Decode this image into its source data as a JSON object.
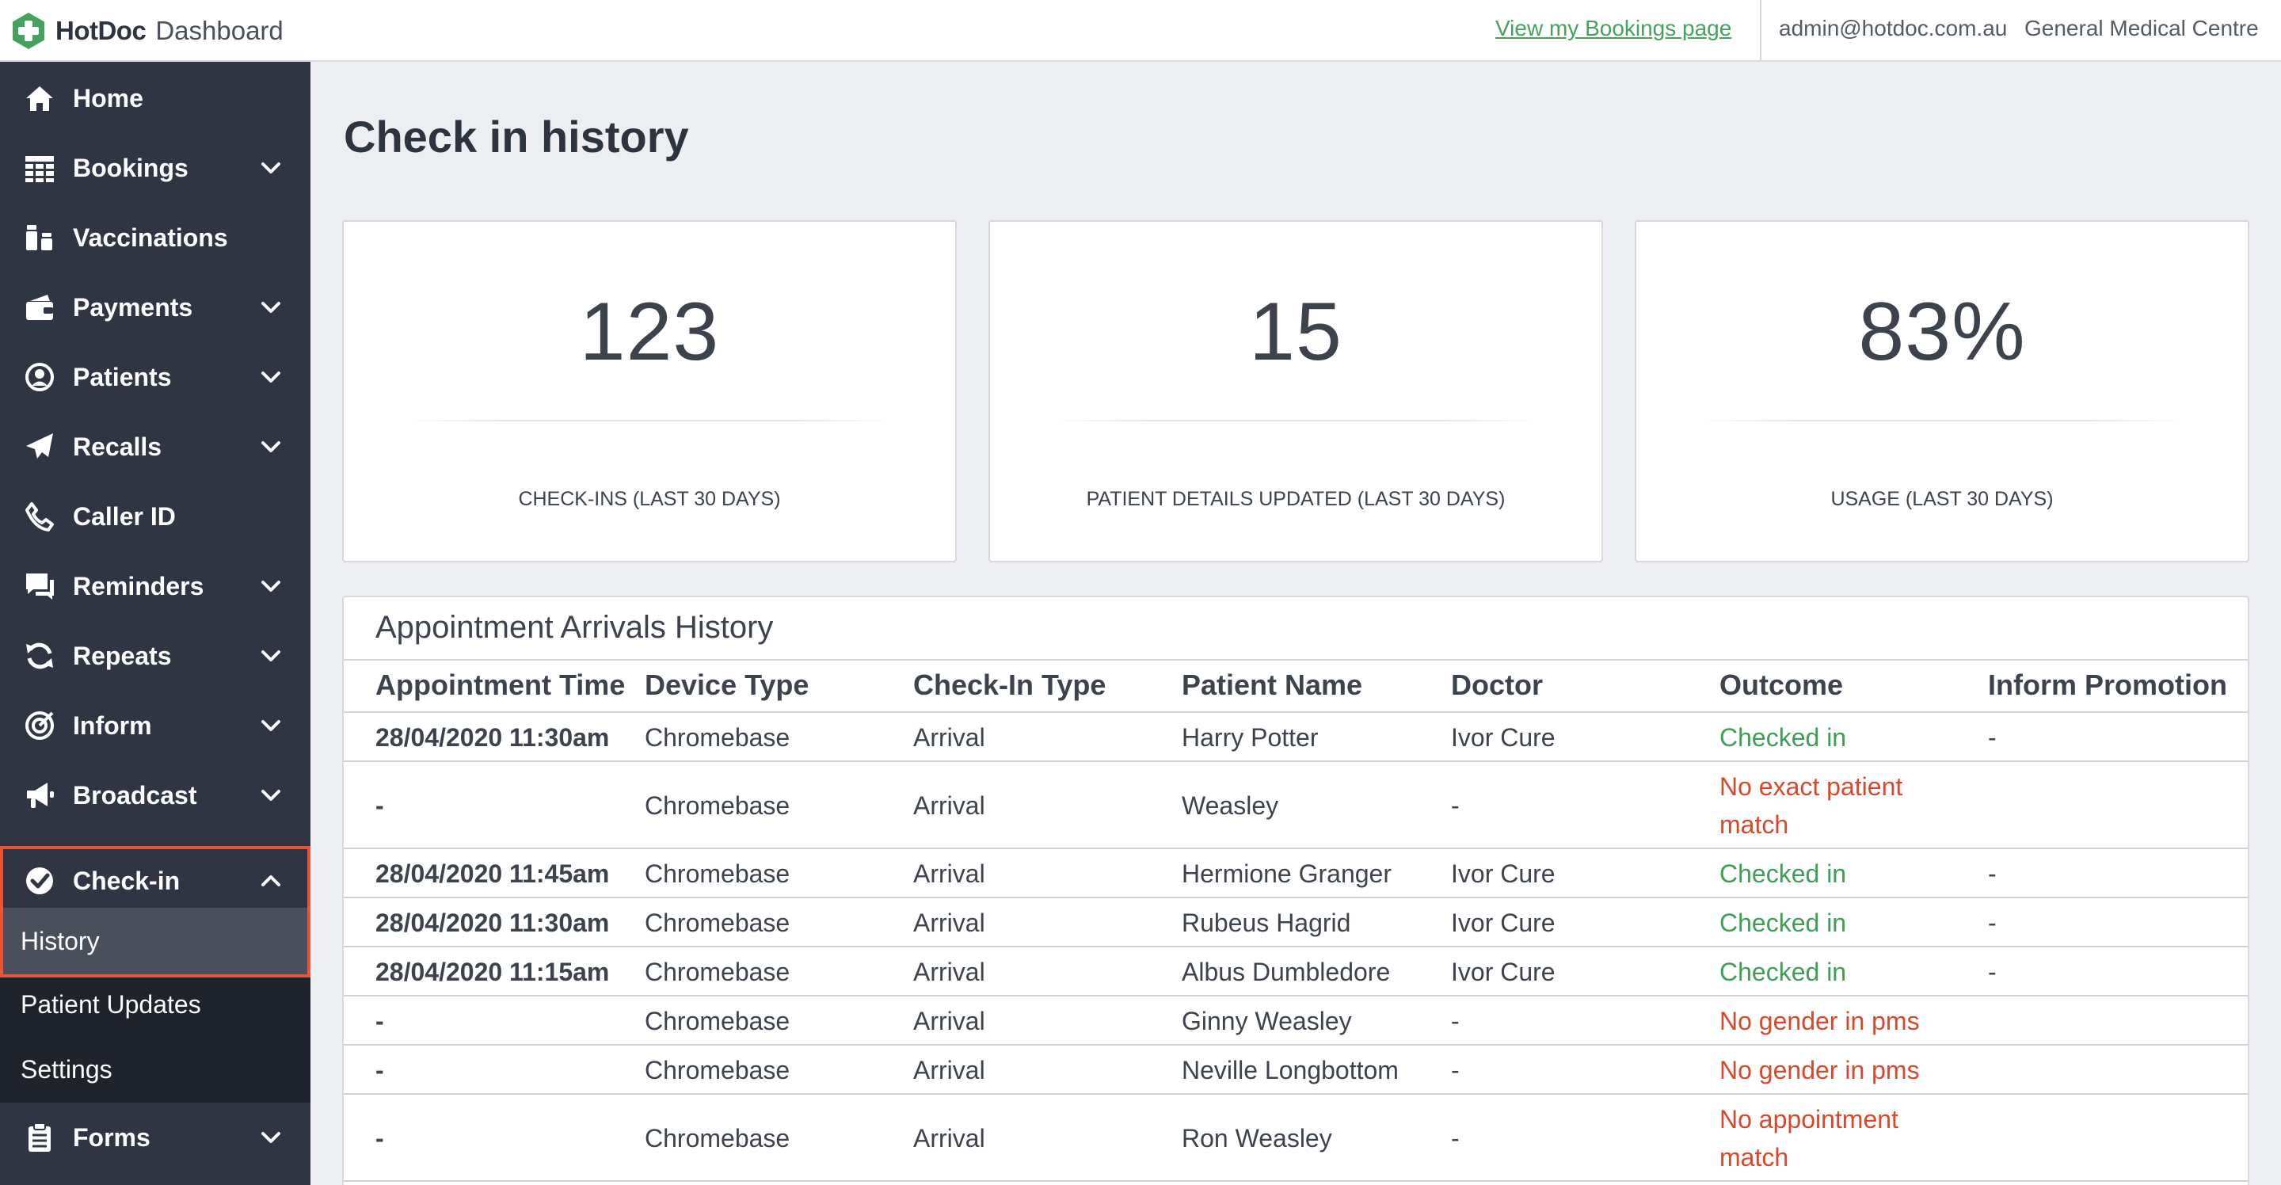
{
  "header": {
    "brand_name": "HotDoc",
    "brand_sub": "Dashboard",
    "bookings_link": "View my Bookings page",
    "user_email": "admin@hotdoc.com.au",
    "clinic_name": "General Medical Centre",
    "colors": {
      "brand_green": "#43a35d",
      "sidebar_bg": "#2f3542",
      "active_outline": "#e8553d"
    }
  },
  "sidebar": {
    "items": [
      {
        "label": "Home",
        "icon": "home-icon",
        "expandable": false
      },
      {
        "label": "Bookings",
        "icon": "calendar-grid-icon",
        "expandable": true
      },
      {
        "label": "Vaccinations",
        "icon": "vaccine-vials-icon",
        "expandable": false
      },
      {
        "label": "Payments",
        "icon": "wallet-card-icon",
        "expandable": true
      },
      {
        "label": "Patients",
        "icon": "user-circle-icon",
        "expandable": true
      },
      {
        "label": "Recalls",
        "icon": "paper-plane-icon",
        "expandable": true
      },
      {
        "label": "Caller ID",
        "icon": "phone-icon",
        "expandable": false
      },
      {
        "label": "Reminders",
        "icon": "chat-bubbles-icon",
        "expandable": true
      },
      {
        "label": "Repeats",
        "icon": "refresh-icon",
        "expandable": true
      },
      {
        "label": "Inform",
        "icon": "target-icon",
        "expandable": true
      },
      {
        "label": "Broadcast",
        "icon": "megaphone-icon",
        "expandable": true
      },
      {
        "label": "Check-in",
        "icon": "check-circle-icon",
        "expandable": true,
        "expanded": true
      },
      {
        "label": "Forms",
        "icon": "clipboard-icon",
        "expandable": true
      }
    ],
    "checkin_sub": [
      "History",
      "Patient Updates",
      "Settings"
    ]
  },
  "page": {
    "title": "Check in history"
  },
  "stats": [
    {
      "value": "123",
      "label": "CHECK-INS (LAST 30 DAYS)"
    },
    {
      "value": "15",
      "label": "PATIENT DETAILS UPDATED (LAST 30 DAYS)"
    },
    {
      "value": "83%",
      "label": "USAGE (LAST 30 DAYS)"
    }
  ],
  "table": {
    "title": "Appointment Arrivals History",
    "columns": [
      "Appointment Time",
      "Device Type",
      "Check-In Type",
      "Patient Name",
      "Doctor",
      "Outcome",
      "Inform Promotion"
    ],
    "rows": [
      {
        "time": "28/04/2020 11:30am",
        "device": "Chromebase",
        "type": "Arrival",
        "patient": "Harry Potter",
        "doctor": "Ivor Cure",
        "outcome": "Checked in",
        "outcome_status": "success",
        "promo": "-"
      },
      {
        "time": "-",
        "device": "Chromebase",
        "type": "Arrival",
        "patient": "Weasley",
        "doctor": "-",
        "outcome": "No exact patient match",
        "outcome_status": "error",
        "promo": ""
      },
      {
        "time": "28/04/2020 11:45am",
        "device": "Chromebase",
        "type": "Arrival",
        "patient": "Hermione Granger",
        "doctor": "Ivor Cure",
        "outcome": "Checked in",
        "outcome_status": "success",
        "promo": "-"
      },
      {
        "time": "28/04/2020 11:30am",
        "device": "Chromebase",
        "type": "Arrival",
        "patient": "Rubeus Hagrid",
        "doctor": "Ivor Cure",
        "outcome": "Checked in",
        "outcome_status": "success",
        "promo": "-"
      },
      {
        "time": "28/04/2020 11:15am",
        "device": "Chromebase",
        "type": "Arrival",
        "patient": "Albus Dumbledore",
        "doctor": "Ivor Cure",
        "outcome": "Checked in",
        "outcome_status": "success",
        "promo": "-"
      },
      {
        "time": "-",
        "device": "Chromebase",
        "type": "Arrival",
        "patient": "Ginny Weasley",
        "doctor": "-",
        "outcome": "No gender in pms",
        "outcome_status": "error",
        "promo": ""
      },
      {
        "time": "-",
        "device": "Chromebase",
        "type": "Arrival",
        "patient": "Neville Longbottom",
        "doctor": "-",
        "outcome": "No gender in pms",
        "outcome_status": "error",
        "promo": ""
      },
      {
        "time": "-",
        "device": "Chromebase",
        "type": "Arrival",
        "patient": "Ron Weasley",
        "doctor": "-",
        "outcome": "No appointment match",
        "outcome_status": "error",
        "promo": ""
      }
    ]
  }
}
